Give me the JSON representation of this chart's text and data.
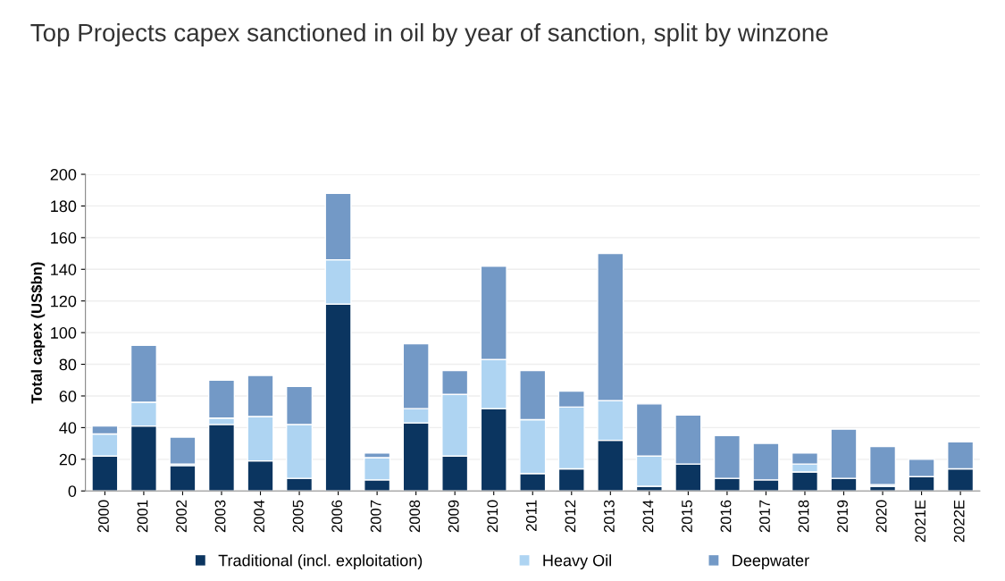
{
  "chart_data": {
    "type": "bar",
    "title": "Top Projects capex sanctioned in oil by year of sanction, split by winzone",
    "ylabel": "Total capex (US$bn)",
    "categories": [
      "2000",
      "2001",
      "2002",
      "2003",
      "2004",
      "2005",
      "2006",
      "2007",
      "2008",
      "2009",
      "2010",
      "2011",
      "2012",
      "2013",
      "2014",
      "2015",
      "2016",
      "2017",
      "2018",
      "2019",
      "2020",
      "2021E",
      "2022E"
    ],
    "stacked": true,
    "series": [
      {
        "name": "Traditional (incl. exploitation)",
        "color": "#0b3560",
        "values": [
          22,
          41,
          16,
          42,
          19,
          8,
          118,
          7,
          43,
          22,
          52,
          11,
          14,
          32,
          3,
          17,
          8,
          7,
          12,
          8,
          3,
          9,
          14
        ]
      },
      {
        "name": "Heavy Oil",
        "color": "#aed4f2",
        "values": [
          14,
          15,
          1,
          4,
          28,
          34,
          28,
          14,
          9,
          39,
          31,
          34,
          39,
          25,
          19,
          null,
          null,
          null,
          5,
          null,
          1,
          null,
          null
        ]
      },
      {
        "name": "Deepwater",
        "color": "#7399c6",
        "values": [
          5,
          36,
          17,
          24,
          26,
          24,
          42,
          3,
          41,
          15,
          59,
          31,
          10,
          93,
          33,
          31,
          27,
          23,
          7,
          31,
          24,
          11,
          17
        ]
      }
    ],
    "ylim": [
      0,
      200
    ],
    "yticks": [
      0,
      20,
      40,
      60,
      80,
      100,
      120,
      140,
      160,
      180,
      200
    ],
    "grid": "y",
    "legend": "bottom"
  }
}
